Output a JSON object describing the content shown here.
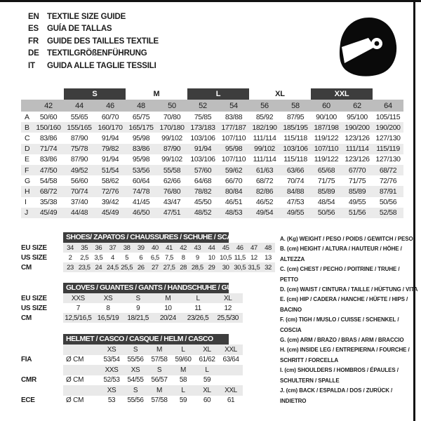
{
  "header": {
    "languages": [
      {
        "code": "EN",
        "title": "TEXTILE SIZE GUIDE"
      },
      {
        "code": "ES",
        "title": "GUÍA DE TALLAS"
      },
      {
        "code": "FR",
        "title": "GUIDE DES TAILLES TEXTILE"
      },
      {
        "code": "DE",
        "title": "TEXTILGRÖßENFÜHRUNG"
      },
      {
        "code": "IT",
        "title": "GUIDA ALLE TAGLIE TESSILI"
      }
    ],
    "logo_icon": "helmet-icon"
  },
  "textile": {
    "size_groups": [
      {
        "label": "S",
        "dark": true
      },
      {
        "label": "M",
        "dark": false
      },
      {
        "label": "L",
        "dark": true
      },
      {
        "label": "XL",
        "dark": false
      },
      {
        "label": "XXL",
        "dark": true
      }
    ],
    "sizes": [
      "42",
      "44",
      "46",
      "48",
      "50",
      "52",
      "54",
      "56",
      "58",
      "60",
      "62",
      "64"
    ],
    "rows": [
      {
        "letter": "A",
        "values": [
          "50/60",
          "55/65",
          "60/70",
          "65/75",
          "70/80",
          "75/85",
          "83/88",
          "85/92",
          "87/95",
          "90/100",
          "95/100",
          "105/115"
        ]
      },
      {
        "letter": "B",
        "values": [
          "150/160",
          "155/165",
          "160/170",
          "165/175",
          "170/180",
          "173/183",
          "177/187",
          "182/190",
          "185/195",
          "187/198",
          "190/200",
          "190/200"
        ]
      },
      {
        "letter": "C",
        "values": [
          "83/86",
          "87/90",
          "91/94",
          "95/98",
          "99/102",
          "103/106",
          "107/110",
          "111/114",
          "115/118",
          "119/122",
          "123/126",
          "127/130"
        ]
      },
      {
        "letter": "D",
        "values": [
          "71/74",
          "75/78",
          "79/82",
          "83/86",
          "87/90",
          "91/94",
          "95/98",
          "99/102",
          "103/106",
          "107/110",
          "111/114",
          "115/119"
        ]
      },
      {
        "letter": "E",
        "values": [
          "83/86",
          "87/90",
          "91/94",
          "95/98",
          "99/102",
          "103/106",
          "107/110",
          "111/114",
          "115/118",
          "119/122",
          "123/126",
          "127/130"
        ]
      },
      {
        "letter": "F",
        "values": [
          "47/50",
          "49/52",
          "51/54",
          "53/56",
          "55/58",
          "57/60",
          "59/62",
          "61/63",
          "63/66",
          "65/68",
          "67/70",
          "68/72"
        ]
      },
      {
        "letter": "G",
        "values": [
          "54/58",
          "56/60",
          "58/62",
          "60/64",
          "62/66",
          "64/68",
          "66/70",
          "68/72",
          "70/74",
          "71/75",
          "71/75",
          "72/76"
        ]
      },
      {
        "letter": "H",
        "values": [
          "68/72",
          "70/74",
          "72/76",
          "74/78",
          "76/80",
          "78/82",
          "80/84",
          "82/86",
          "84/88",
          "85/89",
          "85/89",
          "87/91"
        ]
      },
      {
        "letter": "I",
        "values": [
          "35/38",
          "37/40",
          "39/42",
          "41/45",
          "43/47",
          "45/50",
          "46/51",
          "46/52",
          "47/53",
          "48/54",
          "49/55",
          "50/56"
        ]
      },
      {
        "letter": "J",
        "values": [
          "45/49",
          "44/48",
          "45/49",
          "46/50",
          "47/51",
          "48/52",
          "48/53",
          "49/54",
          "49/55",
          "50/56",
          "51/56",
          "52/58"
        ]
      }
    ]
  },
  "shoes": {
    "title": "SHOES/ ZAPATOS / CHAUSSURES / SCHUHE / SCARPE",
    "rows": [
      {
        "label": "EU SIZE",
        "shaded": true,
        "values": [
          "34",
          "35",
          "36",
          "37",
          "38",
          "39",
          "40",
          "41",
          "42",
          "43",
          "44",
          "45",
          "46",
          "47",
          "48"
        ]
      },
      {
        "label": "US SIZE",
        "shaded": false,
        "values": [
          "2",
          "2,5",
          "3,5",
          "4",
          "5",
          "6",
          "6,5",
          "7,5",
          "8",
          "9",
          "10",
          "10,5",
          "11,5",
          "12",
          "13"
        ]
      },
      {
        "label": "CM",
        "shaded": true,
        "values": [
          "23",
          "23,5",
          "24",
          "24,5",
          "25,5",
          "26",
          "27",
          "27,5",
          "28",
          "28,5",
          "29",
          "30",
          "30,5",
          "31,5",
          "32"
        ]
      }
    ]
  },
  "gloves": {
    "title": "GLOVES / GUANTES / GANTS / HANDSCHUHE / GUANTI",
    "rows": [
      {
        "label": "EU SIZE",
        "shaded": true,
        "values": [
          "XXS",
          "XS",
          "S",
          "M",
          "L",
          "XL"
        ]
      },
      {
        "label": "US SIZE",
        "shaded": false,
        "values": [
          "7",
          "8",
          "9",
          "10",
          "11",
          "12"
        ]
      },
      {
        "label": "CM",
        "shaded": true,
        "values": [
          "12,5/16,5",
          "16,5/19",
          "18/21,5",
          "20/24",
          "23/26,5",
          "25,5/30"
        ]
      }
    ]
  },
  "helmet": {
    "title": "HELMET / CASCO / CASQUE / HELM / CASCO",
    "rows": [
      {
        "label": "",
        "prefix": "",
        "shaded": true,
        "values": [
          "XS",
          "S",
          "M",
          "L",
          "XL",
          "XXL"
        ]
      },
      {
        "label": "FIA",
        "prefix": "Ø CM",
        "shaded": false,
        "values": [
          "53/54",
          "55/56",
          "57/58",
          "59/60",
          "61/62",
          "63/64"
        ]
      },
      {
        "label": "",
        "prefix": "",
        "shaded": true,
        "values": [
          "XXS",
          "XS",
          "S",
          "M",
          "L",
          ""
        ]
      },
      {
        "label": "CMR",
        "prefix": "Ø CM",
        "shaded": false,
        "values": [
          "52/53",
          "54/55",
          "56/57",
          "58",
          "59",
          ""
        ]
      },
      {
        "label": "",
        "prefix": "",
        "shaded": true,
        "values": [
          "XS",
          "S",
          "M",
          "L",
          "XL",
          "XXL"
        ]
      },
      {
        "label": "ECE",
        "prefix": "Ø CM",
        "shaded": false,
        "values": [
          "53",
          "55/56",
          "57/58",
          "59",
          "60",
          "61"
        ]
      }
    ]
  },
  "legend": {
    "items": [
      "A. (Kg) WEIGHT / PESO / POIDS / GEWITCH / PESO",
      "B. (cm) HEIGHT / ALTURA / HAUTEUR / HÖHE / ALTEZZA",
      "C. (cm) CHEST / PECHO / POITRINE / TRUHE / PETTO",
      "D. (cm) WAIST / CINTURA / TAILLE / HÜFTUNG / VITA",
      "E. (cm) HIP / CADERA / HANCHE / HÜFTE / HIPS /  BACINO",
      "F. (cm) TIGH / MUSLO / CUISSE / SCHENKEL / COSCIA",
      "G. (cm) ARM  / BRAZO / BRAS / ARM / BRACCIO",
      "H. (cm) INSIDE LEG / ENTREPIERNA / FOURCHE / SCHRITT / FORCELLA",
      "I. (cm) SHOULDERS / HOMBROS / ÉPAULES / SCHULTERN / SPALLE",
      "J. (cm) BACK / ESPALDA / DOS / ZURÜCK / INDIETRO"
    ]
  },
  "colors": {
    "dark_bar": "#3d3d3d",
    "size_band": "#bdbdbd",
    "row_stripe": "#ebebeb",
    "text": "#1c1c1c"
  }
}
